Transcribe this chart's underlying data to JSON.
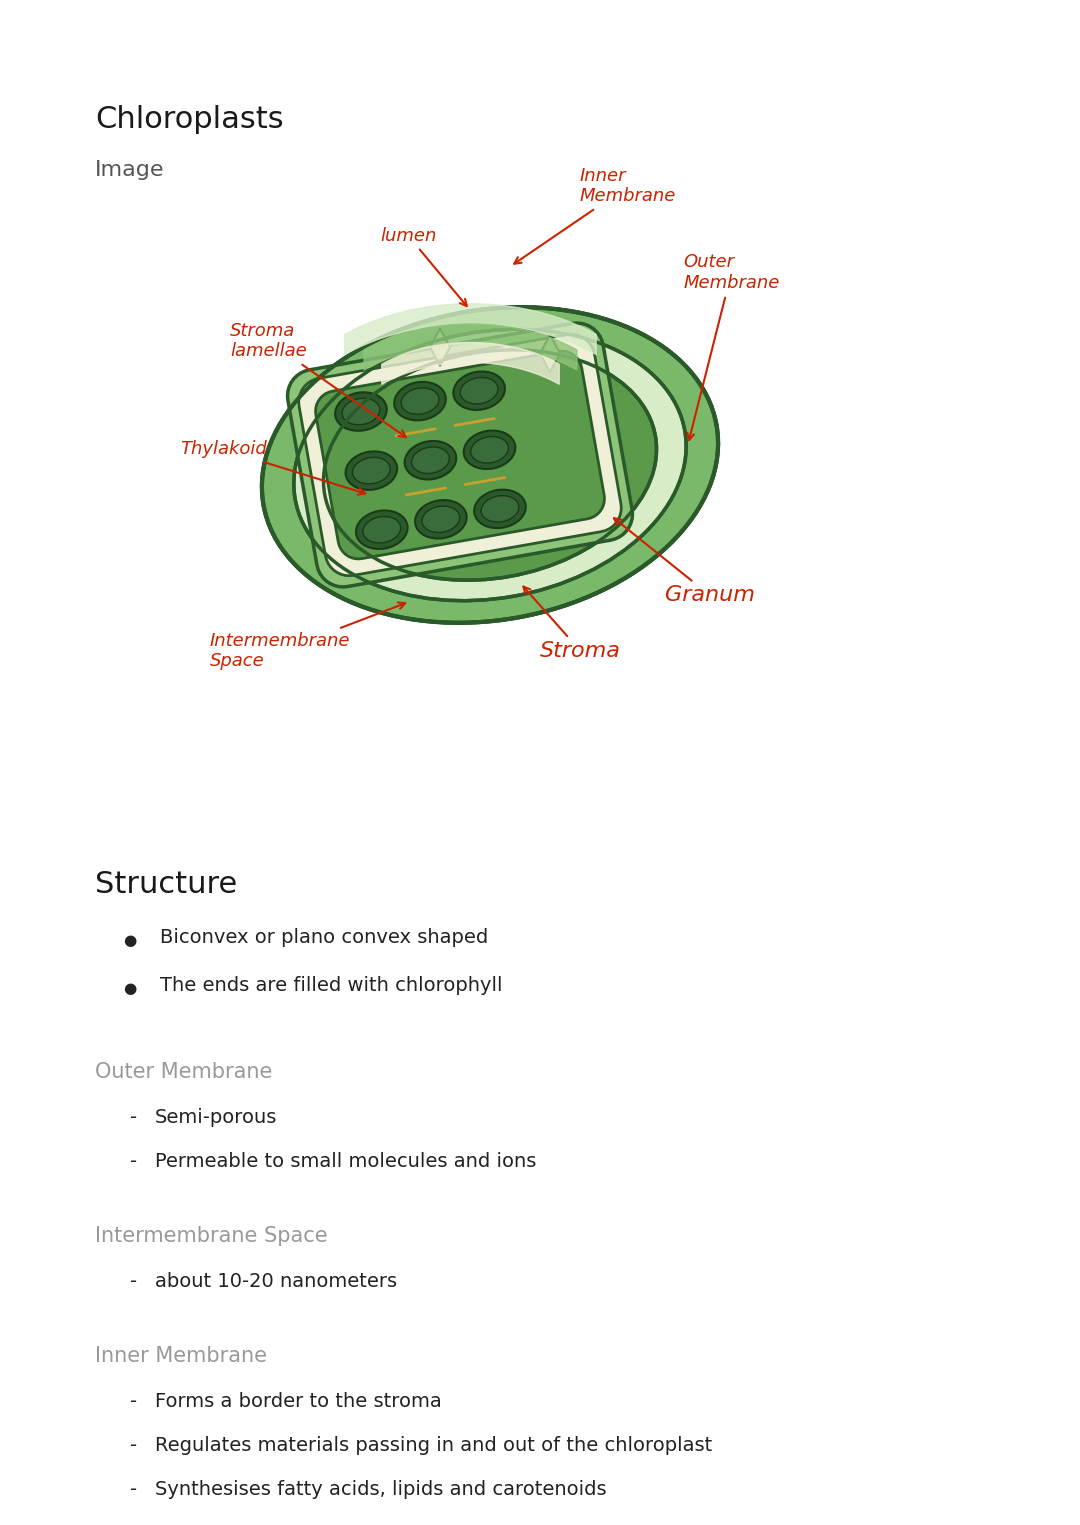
{
  "title": "Chloroplasts",
  "subtitle": "Image",
  "bg_color": "#ffffff",
  "title_color": "#1a1a1a",
  "subtitle_color": "#555555",
  "annotation_color": "#cc2200",
  "section_header_color": "#999999",
  "body_color": "#222222",
  "structure_header": "Structure",
  "structure_bullets": [
    "Biconvex or plano convex shaped",
    "The ends are filled with chlorophyll"
  ],
  "outer_membrane_header": "Outer Membrane",
  "outer_membrane_bullets": [
    "Semi-porous",
    "Permeable to small molecules and ions"
  ],
  "intermembrane_header": "Intermembrane Space",
  "intermembrane_bullets": [
    "about 10-20 nanometers"
  ],
  "inner_membrane_header": "Inner Membrane",
  "inner_membrane_bullets": [
    "Forms a border to the stroma",
    "Regulates materials passing in and out of the chloroplast",
    "Synthesises fatty acids, lipids and carotenoids"
  ],
  "outer_green": "#7ab86a",
  "mid_green": "#8ec47a",
  "light_green": "#c5ddb0",
  "dark_green": "#2a5a2a",
  "inner_dark": "#3a6b3a",
  "stroma_green": "#5a9a4a",
  "cream": "#f0f0d8",
  "very_light_green": "#d8ecc8"
}
